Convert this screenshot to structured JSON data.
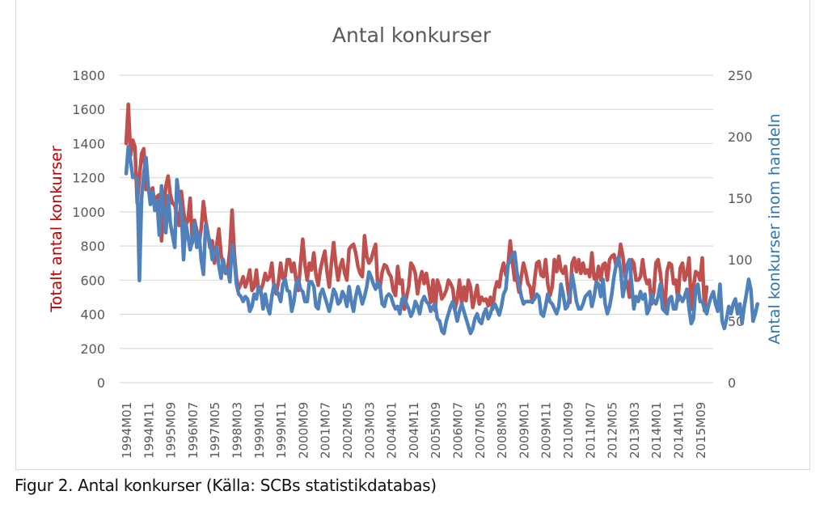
{
  "caption": "Figur 2. Antal konkurser (Källa: SCBs statistikdatabas)",
  "chart_data": {
    "type": "line",
    "title": "Antal konkurser",
    "ylabel_left": "Totalt antal konkurser",
    "ylabel_right": "Antal konkurser inom handeln",
    "ylim_left": [
      0,
      1800
    ],
    "ylim_right": [
      0,
      250
    ],
    "yticks_left": [
      "0",
      "200",
      "400",
      "600",
      "800",
      "1000",
      "1200",
      "1400",
      "1600",
      "1800"
    ],
    "yticks_right": [
      "0",
      "50",
      "100",
      "150",
      "200",
      "250"
    ],
    "grid": true,
    "x_start": "1994M01",
    "x_end": "2015M09",
    "xtick_labels": [
      "1994M01",
      "1994M11",
      "1995M09",
      "1996M07",
      "1997M05",
      "1998M03",
      "1999M01",
      "1999M11",
      "2000M09",
      "2001M07",
      "2002M05",
      "2003M03",
      "2004M01",
      "2004M11",
      "2005M09",
      "2006M07",
      "2007M05",
      "2008M03",
      "2009M01",
      "2009M11",
      "2010M09",
      "2011M07",
      "2012M05",
      "2013M03",
      "2014M01",
      "2014M11",
      "2015M09"
    ],
    "colors": {
      "total": "#c0504d",
      "handeln": "#4f81bd",
      "left_label": "#c00000",
      "right_label": "#2e75b6"
    },
    "series": [
      {
        "name": "Totalt antal konkurser",
        "axis": "left",
        "color": "#c0504d",
        "values": [
          1400,
          1630,
          1330,
          1420,
          1380,
          1050,
          1200,
          1340,
          1370,
          1130,
          1140,
          1110,
          1140,
          1020,
          1090,
          1100,
          830,
          1000,
          1150,
          1210,
          1100,
          1050,
          1040,
          980,
          920,
          1120,
          1000,
          920,
          950,
          1080,
          820,
          950,
          890,
          810,
          900,
          1060,
          950,
          880,
          790,
          830,
          700,
          800,
          900,
          750,
          690,
          640,
          660,
          780,
          1010,
          760,
          610,
          550,
          580,
          620,
          560,
          600,
          660,
          540,
          560,
          660,
          530,
          540,
          580,
          640,
          600,
          620,
          700,
          560,
          520,
          590,
          700,
          610,
          620,
          720,
          720,
          650,
          700,
          600,
          540,
          700,
          840,
          690,
          600,
          700,
          660,
          760,
          630,
          570,
          660,
          720,
          770,
          650,
          560,
          700,
          820,
          690,
          600,
          680,
          720,
          640,
          600,
          780,
          800,
          810,
          760,
          680,
          640,
          620,
          860,
          740,
          700,
          720,
          770,
          810,
          560,
          560,
          650,
          690,
          680,
          640,
          620,
          540,
          510,
          680,
          580,
          600,
          430,
          500,
          560,
          700,
          680,
          640,
          520,
          600,
          650,
          580,
          640,
          560,
          470,
          600,
          420,
          600,
          560,
          490,
          510,
          540,
          600,
          580,
          550,
          430,
          490,
          600,
          460,
          560,
          480,
          600,
          560,
          440,
          500,
          570,
          460,
          500,
          480,
          490,
          450,
          500,
          430,
          540,
          590,
          560,
          650,
          700,
          630,
          690,
          830,
          700,
          600,
          610,
          530,
          620,
          700,
          650,
          580,
          560,
          470,
          600,
          700,
          710,
          630,
          620,
          720,
          580,
          510,
          560,
          720,
          650,
          740,
          660,
          640,
          680,
          560,
          470,
          700,
          730,
          650,
          720,
          640,
          700,
          640,
          660,
          620,
          760,
          610,
          600,
          680,
          600,
          690,
          700,
          600,
          720,
          740,
          750,
          680,
          700,
          810,
          740,
          620,
          580,
          500,
          720,
          700,
          600,
          600,
          620,
          720,
          620,
          580,
          600,
          460,
          530,
          700,
          720,
          640,
          520,
          420,
          650,
          700,
          690,
          580,
          600,
          480,
          670,
          700,
          600,
          640,
          730,
          430,
          560,
          650,
          640,
          600,
          730,
          420,
          560
        ]
      },
      {
        "name": "Antal konkurser inom handeln",
        "axis": "right",
        "color": "#4f81bd",
        "values": [
          170,
          192,
          180,
          167,
          167,
          166,
          83,
          150,
          170,
          183,
          160,
          145,
          155,
          140,
          148,
          120,
          160,
          140,
          122,
          152,
          130,
          120,
          110,
          165,
          150,
          140,
          100,
          130,
          120,
          108,
          115,
          130,
          110,
          122,
          100,
          88,
          128,
          120,
          115,
          100,
          105,
          110,
          95,
          85,
          100,
          90,
          92,
          82,
          112,
          100,
          80,
          72,
          70,
          66,
          70,
          68,
          58,
          62,
          72,
          68,
          78,
          75,
          60,
          72,
          62,
          56,
          70,
          80,
          75,
          72,
          66,
          80,
          84,
          75,
          74,
          58,
          66,
          80,
          84,
          76,
          74,
          66,
          66,
          82,
          82,
          78,
          62,
          60,
          72,
          76,
          70,
          64,
          58,
          66,
          76,
          72,
          64,
          66,
          74,
          70,
          62,
          78,
          66,
          58,
          70,
          78,
          72,
          64,
          70,
          78,
          90,
          86,
          80,
          76,
          82,
          78,
          64,
          62,
          70,
          72,
          70,
          64,
          60,
          62,
          56,
          68,
          70,
          64,
          60,
          54,
          58,
          66,
          62,
          56,
          66,
          70,
          66,
          64,
          58,
          62,
          64,
          52,
          50,
          42,
          40,
          50,
          56,
          62,
          66,
          58,
          50,
          58,
          64,
          58,
          52,
          46,
          40,
          44,
          52,
          56,
          50,
          48,
          56,
          60,
          52,
          56,
          62,
          64,
          60,
          55,
          62,
          72,
          76,
          96,
          100,
          104,
          106,
          90,
          80,
          70,
          64,
          66,
          66,
          66,
          66,
          68,
          72,
          70,
          56,
          54,
          62,
          72,
          66,
          64,
          60,
          56,
          62,
          80,
          72,
          60,
          62,
          72,
          88,
          78,
          66,
          60,
          60,
          64,
          70,
          72,
          74,
          62,
          70,
          82,
          80,
          70,
          84,
          64,
          56,
          62,
          72,
          86,
          96,
          102,
          92,
          70,
          80,
          96,
          100,
          80,
          60,
          70,
          66,
          74,
          68,
          72,
          56,
          60,
          72,
          66,
          64,
          70,
          80,
          60,
          58,
          56,
          68,
          70,
          60,
          60,
          72,
          70,
          66,
          70,
          76,
          60,
          48,
          52,
          76,
          80,
          66,
          66,
          60,
          56,
          64,
          70,
          74,
          64,
          58,
          80,
          50,
          44,
          52,
          62,
          56,
          64,
          68,
          56,
          64,
          48,
          62,
          72,
          84,
          76,
          50,
          56,
          64
        ]
      }
    ]
  }
}
